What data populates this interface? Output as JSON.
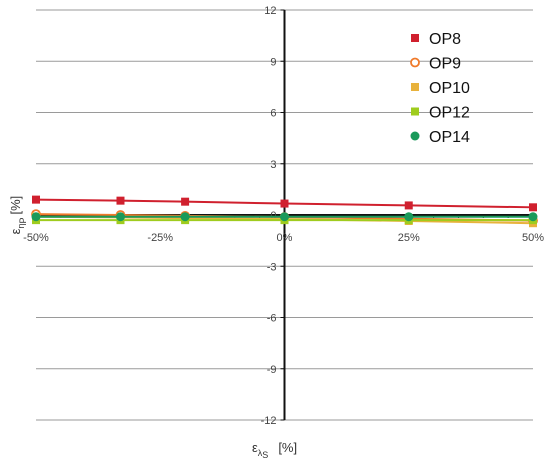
{
  "chart_data": {
    "type": "line",
    "title": "",
    "x": [
      -50,
      -33,
      -20,
      0,
      25,
      50
    ],
    "xticks": [
      -50,
      -25,
      0,
      25,
      50
    ],
    "xtick_labels": [
      "-50%",
      "-25%",
      "0%",
      "25%",
      "50%"
    ],
    "xlim": [
      -50,
      50
    ],
    "ylim": [
      -12,
      12
    ],
    "yticks": [
      -12,
      -9,
      -6,
      -3,
      0,
      3,
      6,
      9,
      12
    ],
    "ytick_labels": [
      "-12",
      "-9",
      "-6",
      "-3",
      "0",
      "3",
      "6",
      "9",
      "12"
    ],
    "grid": "horizontal",
    "legend_position": "top-right",
    "xlabel": {
      "main": "ε",
      "sub": "λ",
      "subsub": "S",
      "unit": "[%]"
    },
    "ylabel": {
      "main": "ε",
      "sub": "η",
      "subsub": "P",
      "unit": "[%]"
    },
    "series": [
      {
        "name": "OP8",
        "color": "#d0202e",
        "marker": "square",
        "values": [
          0.9,
          0.84,
          0.78,
          0.67,
          0.56,
          0.45
        ]
      },
      {
        "name": "OP9",
        "color": "#f07a2a",
        "marker": "circle-open",
        "values": [
          0.05,
          0.0,
          -0.05,
          -0.12,
          -0.22,
          -0.33
        ]
      },
      {
        "name": "OP10",
        "color": "#e8b23c",
        "marker": "square",
        "values": [
          -0.1,
          -0.14,
          -0.18,
          -0.24,
          -0.35,
          -0.48
        ]
      },
      {
        "name": "OP12",
        "color": "#9fcc1e",
        "marker": "square",
        "values": [
          -0.3,
          -0.3,
          -0.3,
          -0.3,
          -0.3,
          -0.3
        ]
      },
      {
        "name": "OP14",
        "color": "#1a9a5a",
        "marker": "circle",
        "values": [
          -0.1,
          -0.1,
          -0.1,
          -0.1,
          -0.1,
          -0.1
        ]
      }
    ]
  }
}
